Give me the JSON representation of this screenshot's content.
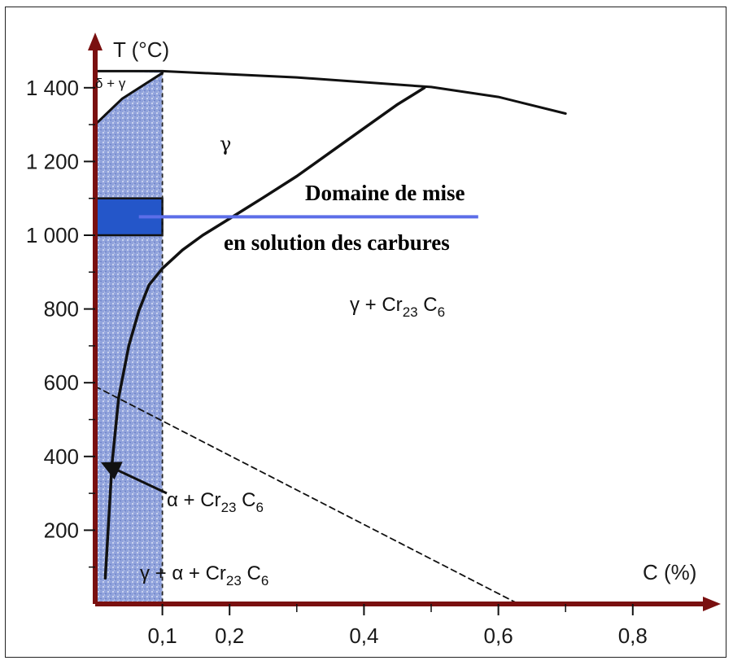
{
  "chart_data": {
    "type": "line",
    "xlabel": "C (%)",
    "ylabel": "T (°C)",
    "xlim": [
      0,
      0.9
    ],
    "ylim": [
      0,
      1500
    ],
    "x_ticks": [
      {
        "value": 0.1,
        "label": "0,1"
      },
      {
        "value": 0.2,
        "label": "0,2"
      },
      {
        "value": 0.4,
        "label": "0,4"
      },
      {
        "value": 0.6,
        "label": "0,6"
      },
      {
        "value": 0.8,
        "label": "0,8"
      }
    ],
    "x_minor_ticks": [
      0.3,
      0.5,
      0.7
    ],
    "y_ticks": [
      {
        "value": 200,
        "label": "200"
      },
      {
        "value": 400,
        "label": "400"
      },
      {
        "value": 600,
        "label": "600"
      },
      {
        "value": 800,
        "label": "800"
      },
      {
        "value": 1000,
        "label": "1 000"
      },
      {
        "value": 1200,
        "label": "1 200"
      },
      {
        "value": 1400,
        "label": "1 400"
      }
    ],
    "y_minor_ticks": [
      100,
      300,
      500,
      700,
      900,
      1100,
      1300
    ],
    "series": [
      {
        "key": "solidus",
        "x": [
          0,
          0.1,
          0.3,
          0.5,
          0.6,
          0.7
        ],
        "y": [
          1445,
          1445,
          1428,
          1402,
          1375,
          1330
        ]
      },
      {
        "key": "gamma_solvus",
        "x": [
          0.015,
          0.025,
          0.035,
          0.05,
          0.065,
          0.08,
          0.1,
          0.13,
          0.16,
          0.2,
          0.25,
          0.3,
          0.35,
          0.4,
          0.45,
          0.49
        ],
        "y": [
          70,
          380,
          560,
          700,
          795,
          865,
          910,
          960,
          1000,
          1045,
          1102,
          1160,
          1225,
          1290,
          1355,
          1400
        ]
      },
      {
        "key": "delta_gamma_boundary",
        "x": [
          0,
          0.04,
          0.1
        ],
        "y": [
          1300,
          1370,
          1440
        ]
      },
      {
        "key": "alpha_boundary",
        "x": [
          0,
          0.63
        ],
        "y": [
          590,
          0
        ]
      }
    ],
    "dashed_vertical": {
      "x": 0.1,
      "y_range": [
        0,
        1445
      ]
    },
    "shaded_region": {
      "x_range": [
        0,
        0.1
      ],
      "y_range": [
        0,
        1445
      ],
      "color": "#2e4fb5"
    },
    "treatment_window": {
      "x_range": [
        0,
        0.1
      ],
      "y_range": [
        1000,
        1100
      ],
      "color": "#2456c9"
    },
    "annotation_line": {
      "x_range": [
        0.065,
        0.57
      ],
      "y": 1050,
      "color": "#5c6ee8"
    },
    "region_labels": {
      "delta_gamma": "δ + γ",
      "gamma": "γ",
      "gamma_carbide": {
        "prefix": "γ + Cr",
        "sub1": "23",
        "mid": " C",
        "sub2": "6"
      },
      "alpha_carbide": {
        "prefix": "α + Cr",
        "sub1": "23",
        "mid": " C",
        "sub2": "6"
      },
      "gamma_alpha_carbide": {
        "prefix": "γ + α + Cr",
        "sub1": "23",
        "mid": " C",
        "sub2": "6"
      }
    },
    "annotation_text": {
      "line1": "Domaine de mise",
      "line2": "en solution des carbures"
    },
    "colors": {
      "axis": "#7a1010",
      "curve": "#111111",
      "annotation_line": "#5c6ee8"
    }
  }
}
